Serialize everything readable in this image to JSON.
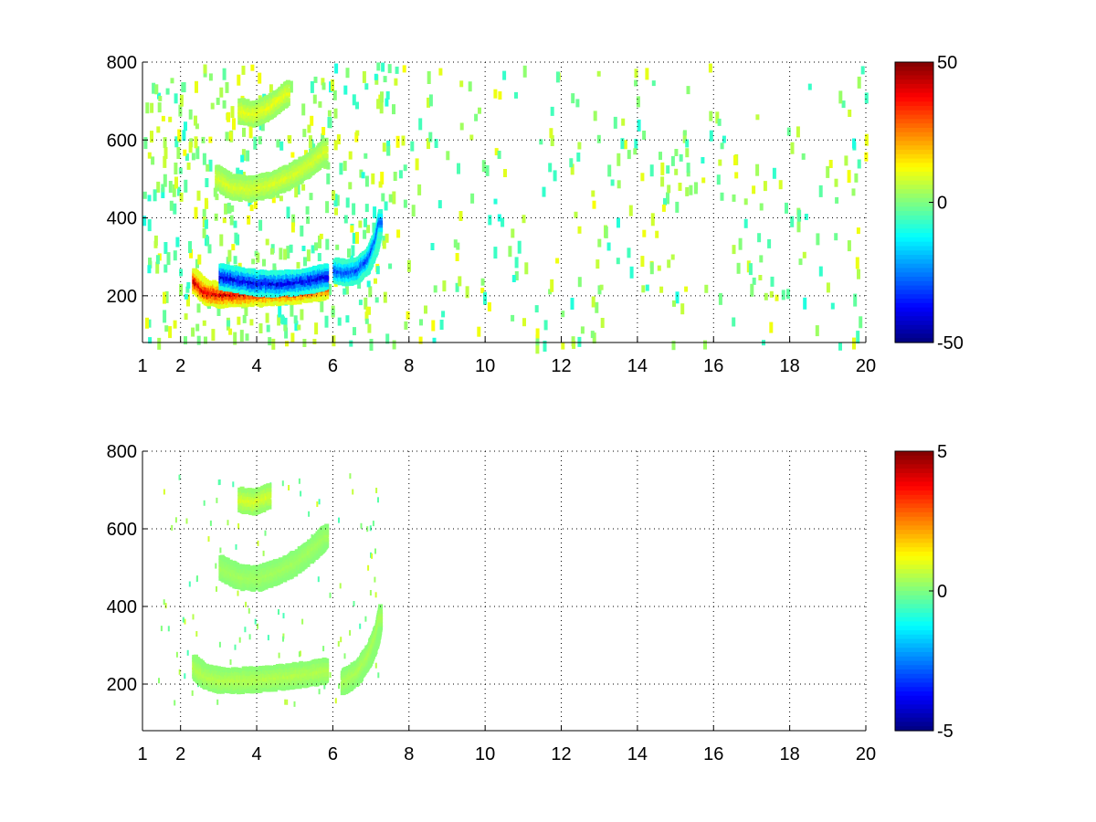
{
  "chart_data": [
    {
      "type": "heatmap",
      "title": "",
      "xlabel": "",
      "ylabel": "",
      "xlim": [
        1,
        20
      ],
      "ylim": [
        80,
        800
      ],
      "x_ticks": [
        1,
        2,
        4,
        6,
        8,
        10,
        12,
        14,
        16,
        18,
        20
      ],
      "y_ticks": [
        200,
        400,
        600,
        800
      ],
      "grid": true,
      "colormap": "jet",
      "colorbar": {
        "min": -50,
        "max": 50,
        "ticks": [
          50,
          0,
          -50
        ]
      },
      "features": [
        {
          "name": "",
          "points": [
            [
              2.3,
              245
            ],
            [
              2.6,
              215
            ],
            [
              3.0,
              208
            ],
            [
              3.5,
              210
            ],
            [
              4.0,
              213
            ],
            [
              4.5,
              215
            ],
            [
              5.0,
              218
            ],
            [
              5.5,
              225
            ],
            [
              5.8,
              230
            ]
          ],
          "value": 45
        },
        {
          "name": "",
          "points": [
            [
              3.0,
              255
            ],
            [
              3.5,
              245
            ],
            [
              4.0,
              238
            ],
            [
              4.5,
              236
            ],
            [
              5.0,
              240
            ],
            [
              5.5,
              248
            ],
            [
              5.8,
              255
            ]
          ],
          "value": -45
        },
        {
          "name": "",
          "points": [
            [
              6.0,
              270
            ],
            [
              6.3,
              265
            ],
            [
              6.6,
              270
            ],
            [
              6.9,
              300
            ],
            [
              7.1,
              350
            ],
            [
              7.2,
              400
            ]
          ],
          "value": -35
        },
        {
          "name": "",
          "points": [
            [
              2.9,
              510
            ],
            [
              3.3,
              485
            ],
            [
              3.8,
              480
            ],
            [
              4.3,
              490
            ],
            [
              4.8,
              510
            ],
            [
              5.3,
              540
            ],
            [
              5.8,
              580
            ]
          ],
          "value": 10
        },
        {
          "name": "",
          "points": [
            [
              3.5,
              680
            ],
            [
              3.9,
              672
            ],
            [
              4.3,
              690
            ],
            [
              4.8,
              730
            ]
          ],
          "value": 12
        }
      ]
    },
    {
      "type": "heatmap",
      "title": "",
      "xlabel": "",
      "ylabel": "",
      "xlim": [
        1,
        20
      ],
      "ylim": [
        80,
        800
      ],
      "x_ticks": [
        1,
        2,
        4,
        6,
        8,
        10,
        12,
        14,
        16,
        18,
        20
      ],
      "y_ticks": [
        200,
        400,
        600,
        800
      ],
      "grid": true,
      "colormap": "jet",
      "colorbar": {
        "min": -5,
        "max": 5,
        "ticks": [
          5,
          0,
          -5
        ]
      },
      "features": [
        {
          "name": "",
          "points": [
            [
              2.3,
              250
            ],
            [
              2.6,
              225
            ],
            [
              3.0,
              215
            ],
            [
              3.5,
              215
            ],
            [
              4.0,
              218
            ],
            [
              4.5,
              222
            ],
            [
              5.0,
              228
            ],
            [
              5.5,
              235
            ],
            [
              5.8,
              240
            ]
          ],
          "value": 0.6
        },
        {
          "name": "",
          "points": [
            [
              6.2,
              210
            ],
            [
              6.6,
              235
            ],
            [
              6.9,
              280
            ],
            [
              7.1,
              330
            ],
            [
              7.2,
              380
            ]
          ],
          "value": 0.5
        },
        {
          "name": "",
          "points": [
            [
              3.0,
              505
            ],
            [
              3.5,
              480
            ],
            [
              4.0,
              478
            ],
            [
              4.5,
              495
            ],
            [
              5.0,
              520
            ],
            [
              5.5,
              560
            ],
            [
              5.8,
              590
            ]
          ],
          "value": 0.4
        },
        {
          "name": "",
          "points": [
            [
              3.5,
              680
            ],
            [
              3.9,
              675
            ],
            [
              4.3,
              690
            ]
          ],
          "value": 1.0
        }
      ]
    }
  ]
}
